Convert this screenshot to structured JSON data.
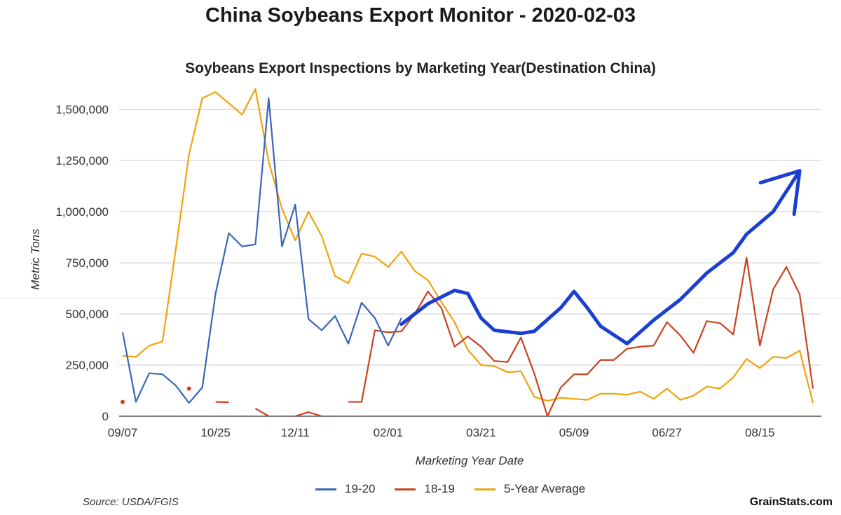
{
  "header": {
    "title": "China Soybeans Export Monitor - 2020-02-03"
  },
  "footer": {
    "source": "Source: USDA/FGIS",
    "brand": "GrainStats.com"
  },
  "colors": {
    "s1920": "#3a66b8",
    "s1819": "#c8431f",
    "s5yr": "#f0a30a",
    "annotation": "#1a3fd1",
    "grid": "#cccccc"
  },
  "chart_data": {
    "type": "line",
    "title": "Soybeans Export Inspections by Marketing Year(Destination China)",
    "xlabel": "Marketing Year Date",
    "ylabel": "Metric Tons",
    "ylim": [
      0,
      1600000
    ],
    "yticks": [
      0,
      250000,
      500000,
      750000,
      1000000,
      1250000,
      1500000
    ],
    "ytick_labels": [
      "0",
      "250,000",
      "500,000",
      "750,000",
      "1,000,000",
      "1,250,000",
      "1,500,000"
    ],
    "xtick_labels": [
      "09/07",
      "10/25",
      "12/11",
      "02/01",
      "03/21",
      "05/09",
      "06/27",
      "08/15"
    ],
    "xtick_weeks": [
      0,
      7,
      13,
      20,
      27,
      34,
      41,
      48
    ],
    "weeks": 52,
    "grid": true,
    "legend_position": "bottom",
    "series": [
      {
        "name": "19-20",
        "values": [
          410000,
          70000,
          210000,
          205000,
          150000,
          65000,
          140000,
          600000,
          895000,
          830000,
          840000,
          1555000,
          830000,
          1035000,
          475000,
          420000,
          490000,
          355000,
          555000,
          480000,
          345000,
          480000,
          null,
          null,
          null,
          null,
          null,
          null,
          null,
          null,
          null,
          null,
          null,
          null,
          null,
          null,
          null,
          null,
          null,
          null,
          null,
          null,
          null,
          null,
          null,
          null,
          null,
          null,
          null,
          null,
          null,
          null,
          null
        ]
      },
      {
        "name": "18-19",
        "values": [
          70000,
          null,
          null,
          null,
          null,
          135000,
          null,
          70000,
          68000,
          null,
          38000,
          0,
          null,
          0,
          20000,
          0,
          null,
          70000,
          70000,
          420000,
          410000,
          415000,
          500000,
          610000,
          530000,
          340000,
          390000,
          340000,
          270000,
          265000,
          385000,
          210000,
          0,
          140000,
          205000,
          205000,
          275000,
          275000,
          330000,
          340000,
          345000,
          460000,
          395000,
          310000,
          465000,
          455000,
          400000,
          775000,
          345000,
          620000,
          730000,
          595000,
          135000
        ]
      },
      {
        "name": "5-Year Average",
        "values": [
          295000,
          290000,
          345000,
          365000,
          815000,
          1280000,
          1555000,
          1585000,
          1530000,
          1475000,
          1600000,
          1245000,
          1015000,
          860000,
          1000000,
          880000,
          685000,
          650000,
          795000,
          780000,
          730000,
          805000,
          710000,
          665000,
          560000,
          460000,
          325000,
          250000,
          245000,
          215000,
          220000,
          95000,
          75000,
          90000,
          85000,
          80000,
          110000,
          110000,
          105000,
          120000,
          85000,
          135000,
          80000,
          100000,
          145000,
          135000,
          190000,
          280000,
          235000,
          290000,
          285000,
          320000,
          65000
        ]
      }
    ],
    "annotation": {
      "type": "hand-drawn-arrow",
      "points": [
        [
          21,
          450000
        ],
        [
          23,
          550000
        ],
        [
          25,
          615000
        ],
        [
          26,
          600000
        ],
        [
          27,
          480000
        ],
        [
          28,
          420000
        ],
        [
          30,
          405000
        ],
        [
          31,
          415000
        ],
        [
          33,
          530000
        ],
        [
          34,
          610000
        ],
        [
          35,
          530000
        ],
        [
          36,
          440000
        ],
        [
          38,
          355000
        ],
        [
          40,
          470000
        ],
        [
          42,
          570000
        ],
        [
          44,
          700000
        ],
        [
          46,
          800000
        ],
        [
          47,
          890000
        ],
        [
          49,
          1000000
        ],
        [
          50,
          1100000
        ],
        [
          51,
          1200000
        ]
      ]
    }
  }
}
